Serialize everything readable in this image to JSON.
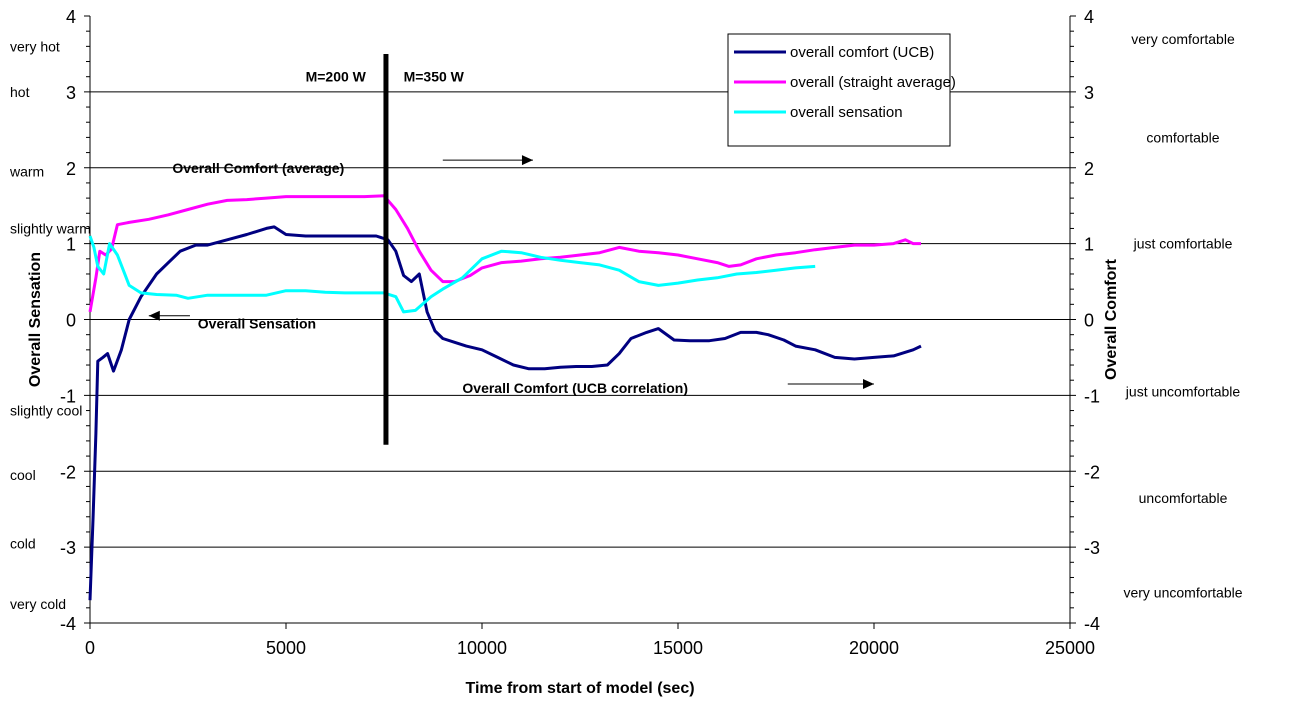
{
  "chart_data": {
    "type": "line",
    "xlabel": "Time from start of model (sec)",
    "ylabel_left": "Overall Sensation",
    "ylabel_right": "Overall Comfort",
    "xlim": [
      0,
      25000
    ],
    "ylim": [
      -4,
      4
    ],
    "x_ticks": [
      0,
      5000,
      10000,
      15000,
      20000,
      25000
    ],
    "y_ticks": [
      -4,
      -3,
      -2,
      -1,
      0,
      1,
      2,
      3,
      4
    ],
    "grid": true,
    "legend_position": "top-right",
    "sensation_scale": [
      {
        "label": "very hot",
        "value": 3.6
      },
      {
        "label": "hot",
        "value": 3.0
      },
      {
        "label": "warm",
        "value": 1.95
      },
      {
        "label": "slightly warm",
        "value": 1.2
      },
      {
        "label": "slightly cool",
        "value": -1.2
      },
      {
        "label": "cool",
        "value": -2.05
      },
      {
        "label": "cold",
        "value": -2.95
      },
      {
        "label": "very cold",
        "value": -3.75
      }
    ],
    "comfort_scale": [
      {
        "label": "very comfortable",
        "value": 3.7
      },
      {
        "label": "comfortable",
        "value": 2.4
      },
      {
        "label": "just comfortable",
        "value": 1.0
      },
      {
        "label": "just uncomfortable",
        "value": -0.95
      },
      {
        "label": "uncomfortable",
        "value": -2.35
      },
      {
        "label": "very uncomfortable",
        "value": -3.6
      }
    ],
    "divider": {
      "x": 7550,
      "y_top": 3.5,
      "y_bottom": -1.65
    },
    "annotations": [
      {
        "text": "M=200 W",
        "x": 5500,
        "y": 3.2
      },
      {
        "text": "M=350 W",
        "x": 8000,
        "y": 3.2
      },
      {
        "text": "Overall Comfort (average)",
        "x": 2100,
        "y": 2.0,
        "arrow": {
          "x1": 9000,
          "x2": 11300,
          "y": 2.1
        }
      },
      {
        "text": "Overall Sensation",
        "x": 2750,
        "y": -0.05,
        "arrow": {
          "x1": 2550,
          "x2": 1500,
          "y": 0.05
        }
      },
      {
        "text": "Overall Comfort (UCB correlation)",
        "x": 9500,
        "y": -0.9,
        "arrow": {
          "x1": 17800,
          "x2": 20000,
          "y": -0.85
        }
      }
    ],
    "series": [
      {
        "name": "overall comfort (UCB)",
        "color": "#000080",
        "points": [
          [
            0,
            -3.7
          ],
          [
            80,
            -2.6
          ],
          [
            150,
            -1.5
          ],
          [
            200,
            -0.55
          ],
          [
            330,
            -0.5
          ],
          [
            450,
            -0.45
          ],
          [
            600,
            -0.68
          ],
          [
            800,
            -0.4
          ],
          [
            1000,
            0.0
          ],
          [
            1300,
            0.3
          ],
          [
            1700,
            0.6
          ],
          [
            2000,
            0.75
          ],
          [
            2300,
            0.9
          ],
          [
            2700,
            0.98
          ],
          [
            3000,
            0.98
          ],
          [
            3500,
            1.05
          ],
          [
            4000,
            1.12
          ],
          [
            4500,
            1.2
          ],
          [
            4700,
            1.22
          ],
          [
            5000,
            1.12
          ],
          [
            5500,
            1.1
          ],
          [
            6000,
            1.1
          ],
          [
            6500,
            1.1
          ],
          [
            7000,
            1.1
          ],
          [
            7300,
            1.1
          ],
          [
            7600,
            1.05
          ],
          [
            7800,
            0.9
          ],
          [
            8000,
            0.58
          ],
          [
            8200,
            0.5
          ],
          [
            8400,
            0.6
          ],
          [
            8600,
            0.1
          ],
          [
            8800,
            -0.15
          ],
          [
            9000,
            -0.25
          ],
          [
            9300,
            -0.3
          ],
          [
            9600,
            -0.35
          ],
          [
            10000,
            -0.4
          ],
          [
            10400,
            -0.5
          ],
          [
            10800,
            -0.6
          ],
          [
            11200,
            -0.65
          ],
          [
            11600,
            -0.65
          ],
          [
            12000,
            -0.63
          ],
          [
            12400,
            -0.62
          ],
          [
            12800,
            -0.62
          ],
          [
            13200,
            -0.6
          ],
          [
            13500,
            -0.45
          ],
          [
            13800,
            -0.25
          ],
          [
            14200,
            -0.17
          ],
          [
            14500,
            -0.12
          ],
          [
            14900,
            -0.27
          ],
          [
            15300,
            -0.28
          ],
          [
            15800,
            -0.28
          ],
          [
            16200,
            -0.25
          ],
          [
            16600,
            -0.17
          ],
          [
            17000,
            -0.17
          ],
          [
            17300,
            -0.2
          ],
          [
            17700,
            -0.27
          ],
          [
            18000,
            -0.35
          ],
          [
            18500,
            -0.4
          ],
          [
            19000,
            -0.5
          ],
          [
            19500,
            -0.52
          ],
          [
            20000,
            -0.5
          ],
          [
            20500,
            -0.48
          ],
          [
            21000,
            -0.4
          ],
          [
            21200,
            -0.35
          ]
        ]
      },
      {
        "name": "overall (straight average)",
        "color": "#ff00ff",
        "points": [
          [
            0,
            0.1
          ],
          [
            150,
            0.55
          ],
          [
            250,
            0.9
          ],
          [
            400,
            0.85
          ],
          [
            550,
            0.93
          ],
          [
            700,
            1.25
          ],
          [
            1000,
            1.28
          ],
          [
            1500,
            1.32
          ],
          [
            2000,
            1.38
          ],
          [
            2500,
            1.45
          ],
          [
            3000,
            1.52
          ],
          [
            3500,
            1.57
          ],
          [
            4000,
            1.58
          ],
          [
            4500,
            1.6
          ],
          [
            5000,
            1.62
          ],
          [
            5500,
            1.62
          ],
          [
            6000,
            1.62
          ],
          [
            6500,
            1.62
          ],
          [
            7000,
            1.62
          ],
          [
            7500,
            1.63
          ],
          [
            7800,
            1.45
          ],
          [
            8100,
            1.2
          ],
          [
            8400,
            0.9
          ],
          [
            8700,
            0.65
          ],
          [
            9000,
            0.5
          ],
          [
            9300,
            0.5
          ],
          [
            9700,
            0.58
          ],
          [
            10000,
            0.68
          ],
          [
            10500,
            0.75
          ],
          [
            11000,
            0.77
          ],
          [
            11500,
            0.8
          ],
          [
            12000,
            0.82
          ],
          [
            12500,
            0.85
          ],
          [
            13000,
            0.88
          ],
          [
            13500,
            0.95
          ],
          [
            14000,
            0.9
          ],
          [
            14500,
            0.88
          ],
          [
            15000,
            0.85
          ],
          [
            15500,
            0.8
          ],
          [
            16000,
            0.75
          ],
          [
            16300,
            0.7
          ],
          [
            16600,
            0.72
          ],
          [
            17000,
            0.8
          ],
          [
            17500,
            0.85
          ],
          [
            18000,
            0.88
          ],
          [
            18500,
            0.92
          ],
          [
            19000,
            0.95
          ],
          [
            19500,
            0.98
          ],
          [
            20000,
            0.98
          ],
          [
            20500,
            1.0
          ],
          [
            20800,
            1.05
          ],
          [
            21000,
            1.0
          ],
          [
            21200,
            1.0
          ]
        ]
      },
      {
        "name": "overall sensation",
        "color": "#00ffff",
        "points": [
          [
            0,
            1.1
          ],
          [
            100,
            0.95
          ],
          [
            200,
            0.7
          ],
          [
            350,
            0.6
          ],
          [
            500,
            1.0
          ],
          [
            700,
            0.85
          ],
          [
            1000,
            0.45
          ],
          [
            1300,
            0.35
          ],
          [
            1700,
            0.33
          ],
          [
            2200,
            0.32
          ],
          [
            2500,
            0.28
          ],
          [
            3000,
            0.32
          ],
          [
            3500,
            0.32
          ],
          [
            4000,
            0.32
          ],
          [
            4500,
            0.32
          ],
          [
            5000,
            0.38
          ],
          [
            5500,
            0.38
          ],
          [
            6000,
            0.36
          ],
          [
            6500,
            0.35
          ],
          [
            7000,
            0.35
          ],
          [
            7500,
            0.35
          ],
          [
            7800,
            0.3
          ],
          [
            8000,
            0.1
          ],
          [
            8300,
            0.12
          ],
          [
            8700,
            0.3
          ],
          [
            9000,
            0.4
          ],
          [
            9500,
            0.55
          ],
          [
            10000,
            0.8
          ],
          [
            10500,
            0.9
          ],
          [
            11000,
            0.88
          ],
          [
            11500,
            0.82
          ],
          [
            12000,
            0.78
          ],
          [
            12500,
            0.75
          ],
          [
            13000,
            0.72
          ],
          [
            13500,
            0.65
          ],
          [
            14000,
            0.5
          ],
          [
            14500,
            0.45
          ],
          [
            15000,
            0.48
          ],
          [
            15500,
            0.52
          ],
          [
            16000,
            0.55
          ],
          [
            16500,
            0.6
          ],
          [
            17000,
            0.62
          ],
          [
            17500,
            0.65
          ],
          [
            18000,
            0.68
          ],
          [
            18500,
            0.7
          ]
        ]
      }
    ]
  }
}
